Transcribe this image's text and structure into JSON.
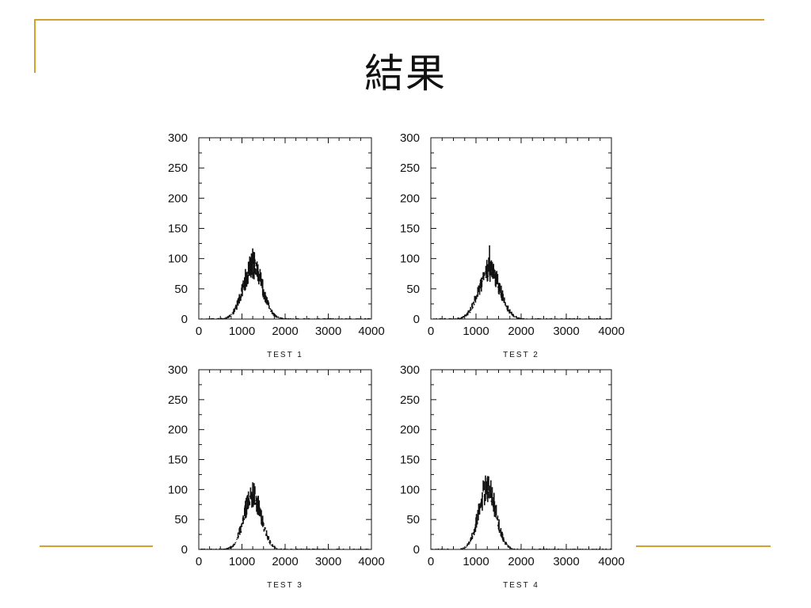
{
  "slide": {
    "title": "結果"
  },
  "theme": {
    "accent": "#d4a12a",
    "ink": "#111111"
  },
  "chart_data": [
    {
      "type": "bar",
      "caption": "TEST 1",
      "xlim": [
        0,
        4000
      ],
      "ylim": [
        0,
        300
      ],
      "xticks": [
        0,
        1000,
        2000,
        3000,
        4000
      ],
      "yticks": [
        0,
        50,
        100,
        150,
        200,
        250,
        300
      ],
      "grid": false,
      "peak_x": 1250,
      "peak_y": 95,
      "max_y": 117,
      "width": 220
    },
    {
      "type": "bar",
      "caption": "TEST 2",
      "xlim": [
        0,
        4000
      ],
      "ylim": [
        0,
        300
      ],
      "xticks": [
        0,
        1000,
        2000,
        3000,
        4000
      ],
      "yticks": [
        0,
        50,
        100,
        150,
        200,
        250,
        300
      ],
      "grid": false,
      "peak_x": 1300,
      "peak_y": 88,
      "max_y": 122,
      "width": 230
    },
    {
      "type": "bar",
      "caption": "TEST 3",
      "xlim": [
        0,
        4000
      ],
      "ylim": [
        0,
        300
      ],
      "xticks": [
        0,
        1000,
        2000,
        3000,
        4000
      ],
      "yticks": [
        0,
        50,
        100,
        150,
        200,
        250,
        300
      ],
      "grid": false,
      "peak_x": 1250,
      "peak_y": 98,
      "max_y": 112,
      "width": 200
    },
    {
      "type": "bar",
      "caption": "TEST 4",
      "xlim": [
        0,
        4000
      ],
      "ylim": [
        0,
        300
      ],
      "xticks": [
        0,
        1000,
        2000,
        3000,
        4000
      ],
      "yticks": [
        0,
        50,
        100,
        150,
        200,
        250,
        300
      ],
      "grid": false,
      "peak_x": 1250,
      "peak_y": 110,
      "max_y": 120,
      "width": 190
    }
  ]
}
